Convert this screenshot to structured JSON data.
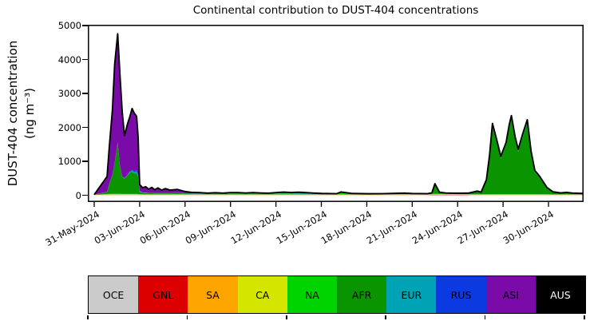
{
  "chart_data": {
    "type": "area",
    "stacked": true,
    "title": "Continental contribution to DUST-404 concentrations",
    "ylabel_line1": "DUST-404 concentration",
    "ylabel_line2": "(ng m⁻³)",
    "ylabel_units": "ng m-3",
    "ylim": [
      -200,
      5024
    ],
    "yticks": [
      0,
      1000,
      2000,
      3000,
      4000,
      5000
    ],
    "x_unit": "days since 31-May-2024",
    "x_start_date": "31-May-2024",
    "x_ticks": [
      {
        "label": "31-May-2024",
        "day": 0
      },
      {
        "label": "03-Jun-2024",
        "day": 3
      },
      {
        "label": "06-Jun-2024",
        "day": 6
      },
      {
        "label": "09-Jun-2024",
        "day": 9
      },
      {
        "label": "12-Jun-2024",
        "day": 12
      },
      {
        "label": "15-Jun-2024",
        "day": 15
      },
      {
        "label": "18-Jun-2024",
        "day": 18
      },
      {
        "label": "21-Jun-2024",
        "day": 21
      },
      {
        "label": "24-Jun-2024",
        "day": 24
      },
      {
        "label": "27-Jun-2024",
        "day": 27
      },
      {
        "label": "30-Jun-2024",
        "day": 30
      }
    ],
    "outline_color": "#000000",
    "x": [
      0,
      0.85,
      1,
      1.2,
      1.35,
      1.55,
      1.7,
      1.85,
      2,
      2.2,
      2.35,
      2.5,
      2.65,
      2.8,
      2.9,
      3,
      3.2,
      3.4,
      3.6,
      3.8,
      4,
      4.2,
      4.45,
      4.7,
      5,
      5.5,
      6,
      6.5,
      7,
      7.5,
      8,
      8.5,
      9,
      9.5,
      10,
      10.5,
      11,
      11.5,
      12,
      12.5,
      13,
      13.5,
      14,
      14.5,
      15,
      16,
      16.3,
      17,
      18,
      19,
      20,
      20.5,
      21,
      22,
      22.3,
      22.5,
      22.8,
      23.2,
      23.7,
      24.2,
      24.7,
      25.1,
      25.3,
      25.55,
      25.9,
      26.1,
      26.3,
      26.6,
      26.85,
      27.2,
      27.4,
      27.55,
      27.8,
      28,
      28.3,
      28.6,
      28.85,
      29.1,
      29.4,
      29.9,
      30.3,
      30.8,
      31.2,
      31.6,
      32,
      32.3
    ],
    "series": [
      {
        "name": "OCE",
        "color": "#cbcbcb",
        "label_color": "#000000",
        "values": [
          2,
          3,
          3,
          3,
          3,
          3,
          3,
          3,
          3,
          3,
          3,
          3,
          3,
          3,
          3,
          3,
          3,
          3,
          3,
          3,
          3,
          3,
          3,
          3,
          3,
          3,
          3,
          3,
          3,
          3,
          3,
          3,
          3,
          3,
          3,
          3,
          3,
          3,
          3,
          3,
          3,
          3,
          3,
          3,
          3,
          3,
          3,
          3,
          3,
          3,
          3,
          3,
          3,
          3,
          3,
          3,
          3,
          3,
          3,
          3,
          3,
          3,
          3,
          3,
          3,
          3,
          3,
          3,
          3,
          3,
          3,
          3,
          3,
          3,
          3,
          3,
          3,
          3,
          3,
          3,
          3,
          3,
          3,
          3,
          3,
          3
        ]
      },
      {
        "name": "GNL",
        "color": "#dd0000",
        "label_color": "#000000",
        "values": [
          1,
          2,
          2,
          2,
          2,
          2,
          2,
          2,
          2,
          2,
          2,
          2,
          2,
          2,
          2,
          2,
          2,
          2,
          2,
          2,
          2,
          2,
          2,
          2,
          2,
          2,
          2,
          2,
          2,
          2,
          2,
          2,
          2,
          2,
          2,
          2,
          2,
          2,
          2,
          2,
          2,
          2,
          2,
          2,
          2,
          2,
          2,
          2,
          2,
          2,
          2,
          2,
          2,
          2,
          8,
          10,
          10,
          12,
          10,
          8,
          5,
          3,
          3,
          3,
          3,
          3,
          3,
          3,
          3,
          3,
          3,
          3,
          3,
          3,
          3,
          3,
          3,
          3,
          3,
          3,
          2,
          2,
          2,
          2,
          2,
          2
        ]
      },
      {
        "name": "SA",
        "color": "#ffa500",
        "label_color": "#000000",
        "values": [
          2,
          6,
          6,
          6,
          6,
          6,
          6,
          6,
          6,
          6,
          6,
          6,
          6,
          6,
          5,
          5,
          5,
          5,
          5,
          5,
          5,
          5,
          5,
          5,
          5,
          5,
          5,
          5,
          5,
          5,
          5,
          5,
          5,
          5,
          5,
          5,
          5,
          5,
          5,
          5,
          5,
          5,
          5,
          5,
          5,
          5,
          5,
          5,
          5,
          5,
          5,
          5,
          5,
          5,
          6,
          6,
          5,
          8,
          6,
          5,
          5,
          4,
          4,
          4,
          4,
          4,
          4,
          4,
          4,
          4,
          4,
          4,
          4,
          4,
          4,
          4,
          4,
          4,
          4,
          4,
          4,
          4,
          4,
          4,
          4,
          4
        ]
      },
      {
        "name": "CA",
        "color": "#d4e600",
        "label_color": "#000000",
        "values": [
          4,
          18,
          20,
          22,
          22,
          22,
          22,
          20,
          20,
          20,
          20,
          20,
          20,
          20,
          18,
          15,
          12,
          12,
          12,
          12,
          12,
          12,
          12,
          12,
          12,
          12,
          10,
          10,
          10,
          10,
          10,
          10,
          10,
          10,
          10,
          10,
          10,
          10,
          10,
          10,
          10,
          10,
          10,
          10,
          10,
          10,
          10,
          10,
          10,
          10,
          10,
          10,
          10,
          10,
          10,
          10,
          10,
          10,
          10,
          10,
          10,
          10,
          10,
          10,
          10,
          12,
          12,
          12,
          12,
          12,
          12,
          12,
          12,
          12,
          12,
          12,
          12,
          12,
          12,
          10,
          10,
          10,
          10,
          10,
          10,
          10
        ]
      },
      {
        "name": "NA",
        "color": "#00d400",
        "label_color": "#000000",
        "values": [
          2,
          5,
          6,
          8,
          8,
          10,
          9,
          8,
          8,
          8,
          8,
          8,
          8,
          8,
          6,
          6,
          5,
          5,
          5,
          5,
          5,
          5,
          5,
          5,
          5,
          10,
          10,
          10,
          10,
          10,
          12,
          12,
          20,
          25,
          20,
          25,
          20,
          18,
          22,
          25,
          20,
          20,
          15,
          10,
          8,
          8,
          50,
          15,
          8,
          8,
          10,
          10,
          8,
          8,
          10,
          15,
          10,
          8,
          8,
          8,
          8,
          10,
          10,
          8,
          8,
          8,
          8,
          8,
          8,
          8,
          8,
          8,
          8,
          8,
          8,
          8,
          8,
          8,
          8,
          8,
          8,
          8,
          10,
          8,
          8,
          8
        ]
      },
      {
        "name": "AFR",
        "color": "#0a9400",
        "label_color": "#000000",
        "values": [
          2,
          60,
          300,
          550,
          900,
          1500,
          800,
          500,
          450,
          550,
          620,
          650,
          600,
          620,
          500,
          70,
          40,
          40,
          30,
          35,
          25,
          30,
          25,
          30,
          25,
          30,
          20,
          15,
          15,
          10,
          15,
          12,
          15,
          15,
          12,
          15,
          12,
          10,
          12,
          12,
          10,
          10,
          8,
          6,
          6,
          5,
          10,
          6,
          5,
          5,
          5,
          5,
          5,
          5,
          20,
          280,
          40,
          15,
          12,
          15,
          20,
          60,
          80,
          50,
          400,
          1050,
          2000,
          1500,
          1050,
          1450,
          1950,
          2220,
          1600,
          1250,
          1700,
          2100,
          1200,
          650,
          500,
          180,
          60,
          30,
          45,
          25,
          20,
          15
        ]
      },
      {
        "name": "EUR",
        "color": "#00a3b5",
        "label_color": "#000000",
        "values": [
          2,
          4,
          5,
          6,
          7,
          8,
          8,
          8,
          8,
          10,
          30,
          40,
          45,
          50,
          45,
          20,
          10,
          8,
          6,
          6,
          5,
          5,
          5,
          5,
          5,
          5,
          5,
          4,
          4,
          4,
          4,
          4,
          4,
          4,
          4,
          4,
          4,
          4,
          12,
          18,
          15,
          18,
          15,
          12,
          8,
          5,
          8,
          5,
          5,
          6,
          12,
          15,
          10,
          6,
          6,
          8,
          6,
          5,
          5,
          5,
          5,
          5,
          6,
          6,
          15,
          35,
          40,
          35,
          30,
          35,
          40,
          45,
          40,
          35,
          40,
          45,
          35,
          25,
          20,
          10,
          6,
          5,
          5,
          5,
          5,
          4
        ]
      },
      {
        "name": "RUS",
        "color": "#0b3be0",
        "label_color": "#000000",
        "values": [
          1,
          3,
          4,
          5,
          6,
          7,
          7,
          7,
          7,
          8,
          20,
          25,
          30,
          35,
          30,
          12,
          6,
          5,
          4,
          4,
          4,
          4,
          4,
          4,
          4,
          4,
          4,
          3,
          3,
          3,
          3,
          3,
          3,
          3,
          3,
          3,
          3,
          3,
          5,
          10,
          10,
          15,
          15,
          12,
          8,
          4,
          5,
          4,
          4,
          5,
          8,
          10,
          6,
          4,
          4,
          5,
          4,
          4,
          4,
          4,
          4,
          4,
          5,
          5,
          12,
          30,
          40,
          35,
          30,
          35,
          40,
          45,
          40,
          35,
          40,
          45,
          30,
          20,
          15,
          8,
          5,
          4,
          4,
          4,
          4,
          3
        ]
      },
      {
        "name": "ASI",
        "color": "#7a0ba8",
        "label_color": "#000000",
        "values": [
          2,
          450,
          1100,
          1900,
          2900,
          3200,
          2700,
          1900,
          1250,
          1500,
          1600,
          1800,
          1700,
          1580,
          1100,
          180,
          140,
          170,
          110,
          160,
          100,
          150,
          90,
          130,
          90,
          100,
          50,
          30,
          25,
          15,
          20,
          12,
          15,
          12,
          8,
          10,
          8,
          6,
          8,
          8,
          6,
          6,
          5,
          4,
          3,
          3,
          4,
          3,
          2,
          2,
          2,
          2,
          2,
          2,
          2,
          3,
          2,
          2,
          2,
          2,
          2,
          2,
          2,
          2,
          3,
          4,
          5,
          4,
          4,
          4,
          5,
          5,
          4,
          4,
          4,
          4,
          3,
          3,
          3,
          2,
          2,
          2,
          2,
          2,
          2,
          2
        ]
      },
      {
        "name": "AUS",
        "color": "#000000",
        "label_color": "#ffffff",
        "values": 0
      }
    ],
    "legend_position": "bottom strip, 10 color cells with ticks every 2 cells"
  }
}
